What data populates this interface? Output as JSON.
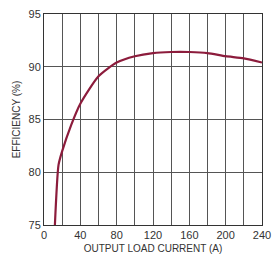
{
  "chart_data": {
    "type": "line",
    "x_label": "OUTPUT LOAD CURRENT (A)",
    "y_label": "EFFICIENCY (%)",
    "series": [
      {
        "name": "Efficiency",
        "color": "#8c1c3c",
        "x": [
          12,
          16,
          20,
          30,
          40,
          60,
          80,
          100,
          120,
          140,
          160,
          180,
          200,
          220,
          240
        ],
        "values": [
          75,
          80.7,
          82,
          84.5,
          86.5,
          89.1,
          90.4,
          91,
          91.3,
          91.4,
          91.4,
          91.3,
          91,
          90.8,
          90.4
        ]
      }
    ],
    "xlim": [
      0,
      240
    ],
    "xticks": [
      0,
      40,
      80,
      120,
      160,
      200,
      240
    ],
    "ylim": [
      75,
      95
    ],
    "yticks": [
      75,
      80,
      85,
      90,
      95
    ],
    "grid": true
  }
}
